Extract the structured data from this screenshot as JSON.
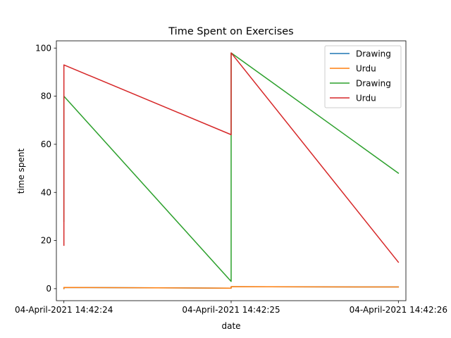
{
  "chart_data": {
    "type": "line",
    "title": "Time Spent on Exercises",
    "xlabel": "date",
    "ylabel": "time spent",
    "x_ticks": [
      "04-April-2021 14:42:24",
      "04-April-2021 14:42:25",
      "04-April-2021 14:42:26"
    ],
    "x_range_seconds": [
      -0.045,
      2.045
    ],
    "ylim": [
      -5,
      103
    ],
    "y_ticks": [
      0,
      20,
      40,
      60,
      80,
      100
    ],
    "grid": false,
    "legend_position": "top-right",
    "series": [
      {
        "name": "Drawing",
        "color": "#1f77b4",
        "points": [
          [
            0.0,
            0.0
          ],
          [
            0.0,
            0.5
          ],
          [
            1.0,
            0.2
          ],
          [
            1.0,
            0.8
          ],
          [
            2.0,
            0.7
          ]
        ]
      },
      {
        "name": "Urdu",
        "color": "#ff7f0e",
        "points": [
          [
            0.0,
            0.0
          ],
          [
            0.0,
            0.5
          ],
          [
            1.0,
            0.2
          ],
          [
            1.0,
            0.8
          ],
          [
            2.0,
            0.7
          ]
        ]
      },
      {
        "name": "Drawing",
        "color": "#2ca02c",
        "points": [
          [
            0.0,
            28
          ],
          [
            0.0,
            80
          ],
          [
            1.0,
            3
          ],
          [
            1.0,
            98
          ],
          [
            2.0,
            48
          ]
        ]
      },
      {
        "name": "Urdu",
        "color": "#d62728",
        "points": [
          [
            0.0,
            18
          ],
          [
            0.0,
            93
          ],
          [
            1.0,
            64
          ],
          [
            1.0,
            98
          ],
          [
            2.0,
            11
          ]
        ]
      }
    ]
  }
}
